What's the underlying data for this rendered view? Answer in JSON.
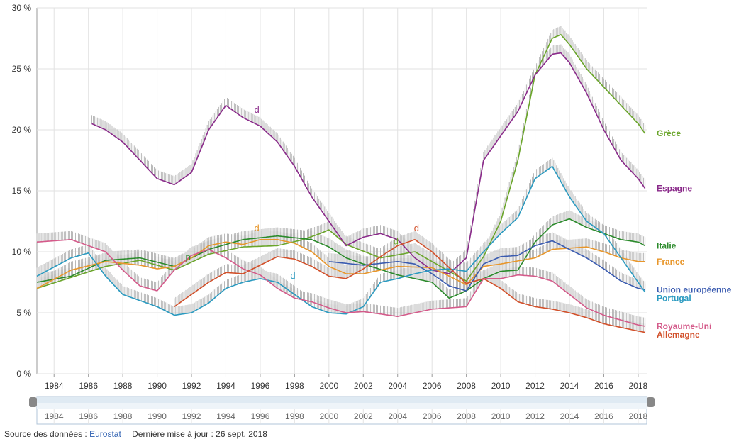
{
  "chart_data": {
    "type": "line",
    "title": "",
    "xlabel": "",
    "ylabel": "",
    "xlim": [
      1983,
      2018.5
    ],
    "ylim": [
      0,
      30
    ],
    "y_ticks": [
      0,
      5,
      10,
      15,
      20,
      25,
      30
    ],
    "y_tick_labels": [
      "0 %",
      "5 %",
      "10 %",
      "15 %",
      "20 %",
      "25 %",
      "30 %"
    ],
    "x_ticks": [
      1984,
      1986,
      1988,
      1990,
      1992,
      1994,
      1996,
      1998,
      2000,
      2002,
      2004,
      2006,
      2008,
      2010,
      2012,
      2014,
      2016,
      2018
    ],
    "x_tick_labels": [
      "1984",
      "1986",
      "1988",
      "1990",
      "1992",
      "1994",
      "1996",
      "1998",
      "2000",
      "2002",
      "2004",
      "2006",
      "2008",
      "2010",
      "2012",
      "2014",
      "2016",
      "2018"
    ],
    "grid": true,
    "legend_position": "right",
    "series": [
      {
        "name": "Grèce",
        "label_value": 19.7,
        "color": "#6aa52a",
        "x": [
          1983,
          1985,
          1987,
          1989,
          1991,
          1993,
          1995,
          1997,
          1998.5,
          1999.5,
          2000,
          2001,
          2003,
          2005,
          2006,
          2007,
          2008,
          2009,
          2010,
          2011,
          2012,
          2013,
          2013.5,
          2014,
          2015,
          2016,
          2017,
          2018,
          2018.4
        ],
        "y": [
          7.0,
          7.9,
          8.8,
          9.3,
          8.5,
          9.8,
          10.4,
          10.5,
          11.0,
          11.5,
          11.8,
          10.6,
          9.5,
          10.0,
          9.2,
          8.4,
          7.6,
          9.6,
          12.5,
          17.5,
          24.5,
          27.5,
          27.8,
          27.0,
          25.0,
          23.5,
          22.0,
          20.5,
          19.7
        ]
      },
      {
        "name": "Espagne",
        "label_value": 15.2,
        "color": "#8a2a8a",
        "x": [
          1986.2,
          1987,
          1988,
          1989,
          1990,
          1991,
          1992,
          1993,
          1994,
          1995,
          1996,
          1997,
          1998,
          1999,
          2000,
          2001,
          2002,
          2003,
          2004,
          2005,
          2006,
          2007,
          2008,
          2009,
          2010,
          2011,
          2012,
          2013,
          2013.5,
          2014,
          2015,
          2016,
          2017,
          2018,
          2018.4
        ],
        "y": [
          20.5,
          20.0,
          19.0,
          17.5,
          16.0,
          15.5,
          16.5,
          20.0,
          22.0,
          21.0,
          20.3,
          19.0,
          17.0,
          14.5,
          12.5,
          10.5,
          11.2,
          11.5,
          11.0,
          9.5,
          8.5,
          8.2,
          9.5,
          17.5,
          19.5,
          21.5,
          24.5,
          26.2,
          26.3,
          25.5,
          23.0,
          20.0,
          17.5,
          16.0,
          15.2
        ]
      },
      {
        "name": "Italie",
        "label_value": 10.5,
        "color": "#2a8a2a",
        "x": [
          1983,
          1985,
          1987,
          1989,
          1991,
          1993,
          1995,
          1997,
          1999,
          2000,
          2001,
          2002,
          2004,
          2006,
          2007,
          2008,
          2009,
          2010,
          2011,
          2012,
          2013,
          2014,
          2015,
          2016,
          2017,
          2018,
          2018.4
        ],
        "y": [
          7.5,
          8.0,
          9.3,
          9.5,
          8.8,
          10.2,
          11.0,
          11.3,
          11.0,
          10.4,
          9.5,
          9.0,
          8.1,
          7.5,
          6.2,
          6.8,
          7.8,
          8.4,
          8.5,
          10.8,
          12.2,
          12.7,
          12.0,
          11.5,
          11.0,
          10.8,
          10.5
        ]
      },
      {
        "name": "France",
        "label_value": 9.2,
        "color": "#e8962a",
        "x": [
          1983,
          1985,
          1987,
          1989,
          1990,
          1991,
          1992,
          1993,
          1994,
          1995,
          1996,
          1997,
          1998,
          1999,
          2000,
          2001,
          2002,
          2004,
          2006,
          2008,
          2009,
          2010,
          2012,
          2013,
          2015,
          2016,
          2017,
          2018,
          2018.4
        ],
        "y": [
          7.0,
          8.5,
          9.2,
          8.9,
          8.6,
          8.8,
          9.5,
          10.5,
          10.8,
          10.6,
          11.0,
          11.0,
          10.7,
          10.0,
          8.8,
          8.2,
          8.2,
          8.8,
          8.7,
          7.3,
          8.8,
          9.0,
          9.5,
          10.2,
          10.4,
          10.0,
          9.5,
          9.2,
          9.2
        ]
      },
      {
        "name": "Union européenne",
        "label_value": 6.9,
        "color": "#3a5bb0",
        "x": [
          2000,
          2002,
          2004,
          2005,
          2006,
          2007,
          2008,
          2009,
          2010,
          2011,
          2012,
          2013,
          2014,
          2015,
          2016,
          2017,
          2018,
          2018.4
        ],
        "y": [
          9.2,
          8.9,
          9.2,
          9.0,
          8.2,
          7.2,
          6.8,
          9.0,
          9.6,
          9.7,
          10.5,
          10.9,
          10.2,
          9.5,
          8.6,
          7.6,
          7.0,
          6.9
        ]
      },
      {
        "name": "Portugal",
        "label_value": 6.7,
        "color": "#2a9ac0",
        "x": [
          1983,
          1985,
          1986,
          1987,
          1988,
          1989,
          1990,
          1991,
          1992,
          1993,
          1994,
          1995,
          1996,
          1997,
          1998,
          1999,
          2000,
          2001,
          2002,
          2003,
          2004,
          2005,
          2006,
          2007,
          2008,
          2009,
          2010,
          2011,
          2012,
          2013,
          2014,
          2015,
          2016,
          2017,
          2018,
          2018.4
        ],
        "y": [
          8.0,
          9.5,
          9.9,
          8.0,
          6.5,
          6.0,
          5.5,
          4.8,
          5.0,
          5.8,
          7.0,
          7.5,
          7.8,
          7.5,
          6.5,
          5.5,
          5.0,
          4.9,
          5.5,
          7.5,
          7.8,
          8.2,
          8.5,
          8.6,
          8.4,
          10.0,
          11.5,
          12.8,
          16.0,
          17.0,
          14.5,
          12.5,
          11.5,
          9.5,
          7.5,
          6.7
        ]
      },
      {
        "name": "Royaume-Uni",
        "label_value": 3.9,
        "color": "#d45a8a",
        "x": [
          1983,
          1985,
          1987,
          1988,
          1989,
          1990,
          1991,
          1992,
          1993,
          1994,
          1995,
          1996,
          1997,
          1998,
          1999,
          2000,
          2001,
          2002,
          2004,
          2006,
          2008,
          2009,
          2010,
          2011,
          2012,
          2013,
          2014,
          2015,
          2016,
          2017,
          2018,
          2018.4
        ],
        "y": [
          10.8,
          11.0,
          10.0,
          8.5,
          7.2,
          6.8,
          8.5,
          9.7,
          10.2,
          9.5,
          8.6,
          8.1,
          7.0,
          6.2,
          5.9,
          5.4,
          5.0,
          5.1,
          4.7,
          5.3,
          5.5,
          7.8,
          7.8,
          8.1,
          8.0,
          7.6,
          6.5,
          5.4,
          4.8,
          4.4,
          4.0,
          3.9
        ]
      },
      {
        "name": "Allemagne",
        "label_value": 3.4,
        "color": "#d2502a",
        "x": [
          1991,
          1992,
          1993,
          1994,
          1995,
          1996,
          1997,
          1998,
          1999,
          2000,
          2001,
          2002,
          2003,
          2004,
          2005,
          2006,
          2007,
          2008,
          2009,
          2010,
          2011,
          2012,
          2013,
          2014,
          2015,
          2016,
          2017,
          2018,
          2018.4
        ],
        "y": [
          5.5,
          6.5,
          7.5,
          8.3,
          8.2,
          8.9,
          9.6,
          9.4,
          8.8,
          8.0,
          7.8,
          8.6,
          9.6,
          10.5,
          11.0,
          10.0,
          8.7,
          7.4,
          7.8,
          7.0,
          5.9,
          5.5,
          5.3,
          5.0,
          4.6,
          4.1,
          3.8,
          3.5,
          3.4
        ]
      }
    ],
    "annotations": [
      {
        "text": "d",
        "x": 1995.8,
        "y": 21.4,
        "color": "#8a2a8a"
      },
      {
        "text": "d",
        "x": 1995.8,
        "y": 11.7,
        "color": "#e8962a"
      },
      {
        "text": "d",
        "x": 2005.1,
        "y": 11.7,
        "color": "#d2502a"
      },
      {
        "text": "d",
        "x": 2003.9,
        "y": 10.6,
        "color": "#6aa52a"
      },
      {
        "text": "d",
        "x": 1997.9,
        "y": 7.8,
        "color": "#2a9ac0"
      },
      {
        "text": "p",
        "x": 1991.8,
        "y": 9.3,
        "color": "#2a8a2a"
      }
    ],
    "navigator": {
      "x_ticks": [
        1984,
        1986,
        1988,
        1990,
        1992,
        1994,
        1996,
        1998,
        2000,
        2002,
        2004,
        2006,
        2008,
        2010,
        2012,
        2014,
        2016,
        2018
      ],
      "x_tick_labels": [
        "1984",
        "1986",
        "1988",
        "1990",
        "1992",
        "1994",
        "1996",
        "1998",
        "2000",
        "2002",
        "2004",
        "2006",
        "2008",
        "2010",
        "2012",
        "2014",
        "2016",
        "2018"
      ]
    }
  },
  "footer": {
    "source_label": "Source des données :",
    "source_link": "Eurostat",
    "update_text": "Dernière mise à jour : 26 sept. 2018"
  }
}
